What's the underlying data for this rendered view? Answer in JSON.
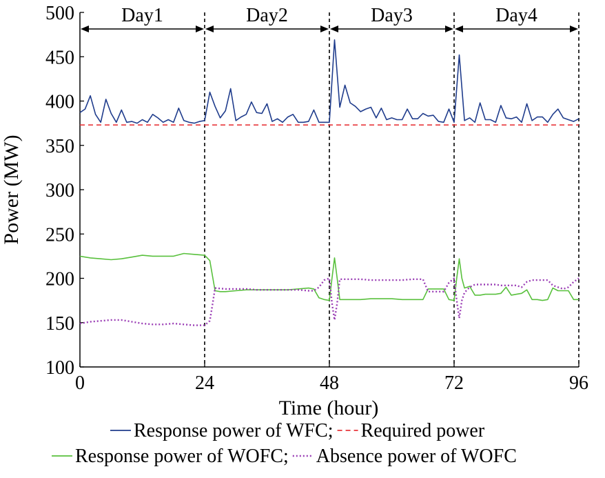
{
  "chart_data": {
    "type": "line",
    "xlabel": "Time (hour)",
    "ylabel": "Power (MW)",
    "xlim": [
      0,
      96
    ],
    "ylim": [
      100,
      500
    ],
    "xticks": [
      0,
      24,
      48,
      72,
      96
    ],
    "yticks": [
      100,
      150,
      200,
      250,
      300,
      350,
      400,
      450,
      500
    ],
    "grid": false,
    "legend_position": "bottom",
    "day_dividers": [
      24,
      48,
      72,
      96
    ],
    "day_labels": [
      {
        "label": "Day1",
        "from": 0,
        "to": 24
      },
      {
        "label": "Day2",
        "from": 24,
        "to": 48
      },
      {
        "label": "Day3",
        "from": 48,
        "to": 72
      },
      {
        "label": "Day4",
        "from": 72,
        "to": 96
      }
    ],
    "series": [
      {
        "name": "Response power of WFC;",
        "color": "#1f3c8c",
        "dash": "solid",
        "x": [
          0,
          1,
          2,
          3,
          4,
          5,
          6,
          7,
          8,
          9,
          10,
          11,
          12,
          13,
          14,
          15,
          16,
          17,
          18,
          19,
          20,
          21,
          22,
          23,
          24,
          25,
          26,
          27,
          28,
          29,
          30,
          31,
          32,
          33,
          34,
          35,
          36,
          37,
          38,
          39,
          40,
          41,
          42,
          43,
          44,
          45,
          46,
          47,
          48,
          49,
          50,
          51,
          52,
          53,
          54,
          55,
          56,
          57,
          58,
          59,
          60,
          61,
          62,
          63,
          64,
          65,
          66,
          67,
          68,
          69,
          70,
          71,
          72,
          73,
          74,
          75,
          76,
          77,
          78,
          79,
          80,
          81,
          82,
          83,
          84,
          85,
          86,
          87,
          88,
          89,
          90,
          91,
          92,
          93,
          94,
          95,
          96
        ],
        "values": [
          387,
          391,
          406,
          385,
          376,
          402,
          386,
          376,
          390,
          376,
          377,
          375,
          379,
          376,
          385,
          381,
          376,
          379,
          376,
          392,
          378,
          376,
          375,
          377,
          378,
          410,
          394,
          381,
          389,
          414,
          378,
          382,
          385,
          399,
          387,
          386,
          397,
          377,
          380,
          376,
          382,
          385,
          376,
          376,
          377,
          390,
          376,
          376,
          376,
          469,
          393,
          418,
          398,
          394,
          388,
          391,
          393,
          381,
          392,
          379,
          381,
          379,
          379,
          391,
          380,
          380,
          386,
          383,
          384,
          377,
          376,
          391,
          376,
          452,
          378,
          381,
          376,
          398,
          379,
          379,
          376,
          395,
          381,
          380,
          382,
          376,
          397,
          378,
          382,
          382,
          376,
          385,
          391,
          381,
          379,
          377,
          380
        ]
      },
      {
        "name": "Required power",
        "color": "#e8363a",
        "dash": "dashed",
        "x": [
          0,
          96
        ],
        "values": [
          373,
          373
        ]
      },
      {
        "name": "Response power of WOFC;",
        "color": "#58c03c",
        "dash": "solid",
        "x": [
          0,
          2,
          4,
          6,
          8,
          10,
          12,
          14,
          16,
          18,
          20,
          22,
          24,
          25,
          26,
          27,
          28,
          30,
          32,
          34,
          36,
          38,
          40,
          42,
          44,
          45,
          46,
          47,
          48,
          48.5,
          49,
          49.5,
          50,
          52,
          54,
          56,
          58,
          60,
          62,
          64,
          66,
          67,
          68,
          69,
          70,
          71,
          72,
          72.5,
          73,
          73.5,
          74,
          75,
          76,
          77,
          78,
          80,
          81,
          82,
          83,
          84,
          85,
          86,
          87,
          88,
          89,
          90,
          91,
          92,
          93,
          94,
          95,
          96
        ],
        "values": [
          225,
          223,
          222,
          221,
          222,
          224,
          226,
          225,
          225,
          225,
          228,
          227,
          226,
          220,
          186,
          185,
          185,
          186,
          187,
          187,
          187,
          187,
          187,
          188,
          189,
          188,
          178,
          176,
          175,
          200,
          223,
          200,
          176,
          176,
          176,
          177,
          177,
          177,
          176,
          176,
          176,
          188,
          188,
          188,
          188,
          176,
          175,
          200,
          222,
          200,
          189,
          191,
          181,
          181,
          182,
          182,
          183,
          190,
          181,
          182,
          183,
          187,
          176,
          176,
          175,
          176,
          189,
          186,
          186,
          186,
          176,
          176
        ]
      },
      {
        "name": "Absence power of WOFC",
        "color": "#9a3db5",
        "dash": "dotted",
        "x": [
          0,
          2,
          4,
          6,
          8,
          10,
          12,
          14,
          16,
          18,
          20,
          22,
          24,
          25,
          25.5,
          26,
          28,
          30,
          32,
          34,
          36,
          38,
          40,
          42,
          44,
          45,
          46,
          47,
          48,
          48.5,
          49,
          49.5,
          50,
          52,
          54,
          56,
          58,
          60,
          62,
          64,
          66,
          67,
          68,
          69,
          70,
          71,
          72,
          72.5,
          73,
          73.5,
          74,
          75,
          76,
          77,
          78,
          80,
          81,
          82,
          83,
          84,
          85,
          86,
          87,
          88,
          89,
          90,
          91,
          92,
          93,
          94,
          95,
          96
        ],
        "values": [
          149,
          151,
          152,
          153,
          153,
          151,
          149,
          148,
          148,
          149,
          148,
          147,
          147,
          152,
          170,
          189,
          188,
          188,
          188,
          187,
          187,
          187,
          187,
          187,
          186,
          186,
          190,
          198,
          200,
          172,
          153,
          172,
          199,
          199,
          199,
          198,
          198,
          198,
          198,
          199,
          199,
          185,
          185,
          185,
          185,
          195,
          200,
          175,
          155,
          175,
          184,
          190,
          193,
          193,
          193,
          193,
          192,
          192,
          192,
          192,
          190,
          196,
          198,
          198,
          198,
          198,
          192,
          190,
          188,
          190,
          196,
          200
        ]
      }
    ],
    "legend": [
      {
        "row": 0,
        "label": "Response power of WFC;",
        "color": "#1f3c8c",
        "dash": "solid"
      },
      {
        "row": 0,
        "label": "Required power",
        "color": "#e8363a",
        "dash": "dashed"
      },
      {
        "row": 1,
        "label": "Response power of WOFC;",
        "color": "#58c03c",
        "dash": "solid"
      },
      {
        "row": 1,
        "label": "Absence power of WOFC",
        "color": "#9a3db5",
        "dash": "dotted"
      }
    ]
  }
}
